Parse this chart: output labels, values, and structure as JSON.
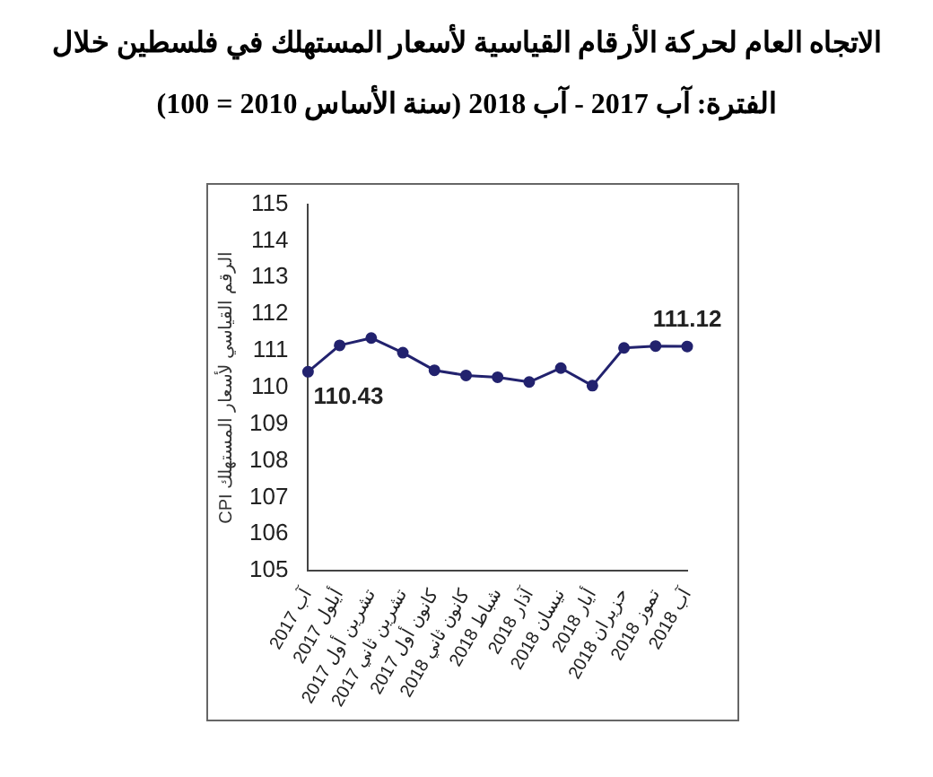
{
  "chart_data": {
    "type": "line",
    "title": "الاتجاه العام لحركة الأرقام القياسية لأسعار المستهلك في فلسطين خلال الفترة: آب 2017 - آب 2018 (سنة الأساس 2010 = 100)",
    "ylabel": "CPI الرقم القياسي لأسعار المستهلك",
    "categories": [
      "آب 2017",
      "أيلول 2017",
      "تشرين أول 2017",
      "تشرين ثاني 2017",
      "كانون أول 2017",
      "كانون ثاني 2018",
      "شباط 2018",
      "آذار 2018",
      "نيسان 2018",
      "أيار 2018",
      "حزيران 2018",
      "تموز 2018",
      "آب 2018"
    ],
    "series": [
      {
        "color": "#22226e",
        "values": [
          110.43,
          111.15,
          111.35,
          110.95,
          110.47,
          110.33,
          110.28,
          110.15,
          110.53,
          110.05,
          111.08,
          111.13,
          111.12
        ],
        "value_labels": [
          "110.43",
          null,
          null,
          null,
          null,
          null,
          null,
          null,
          null,
          null,
          null,
          null,
          "111.12"
        ]
      }
    ],
    "ylim": [
      105,
      115
    ],
    "yticks": [
      105,
      106,
      107,
      108,
      109,
      110,
      111,
      112,
      113,
      114,
      115
    ],
    "grid": false,
    "legend": false,
    "marker": "circle",
    "line_style": "solid"
  }
}
